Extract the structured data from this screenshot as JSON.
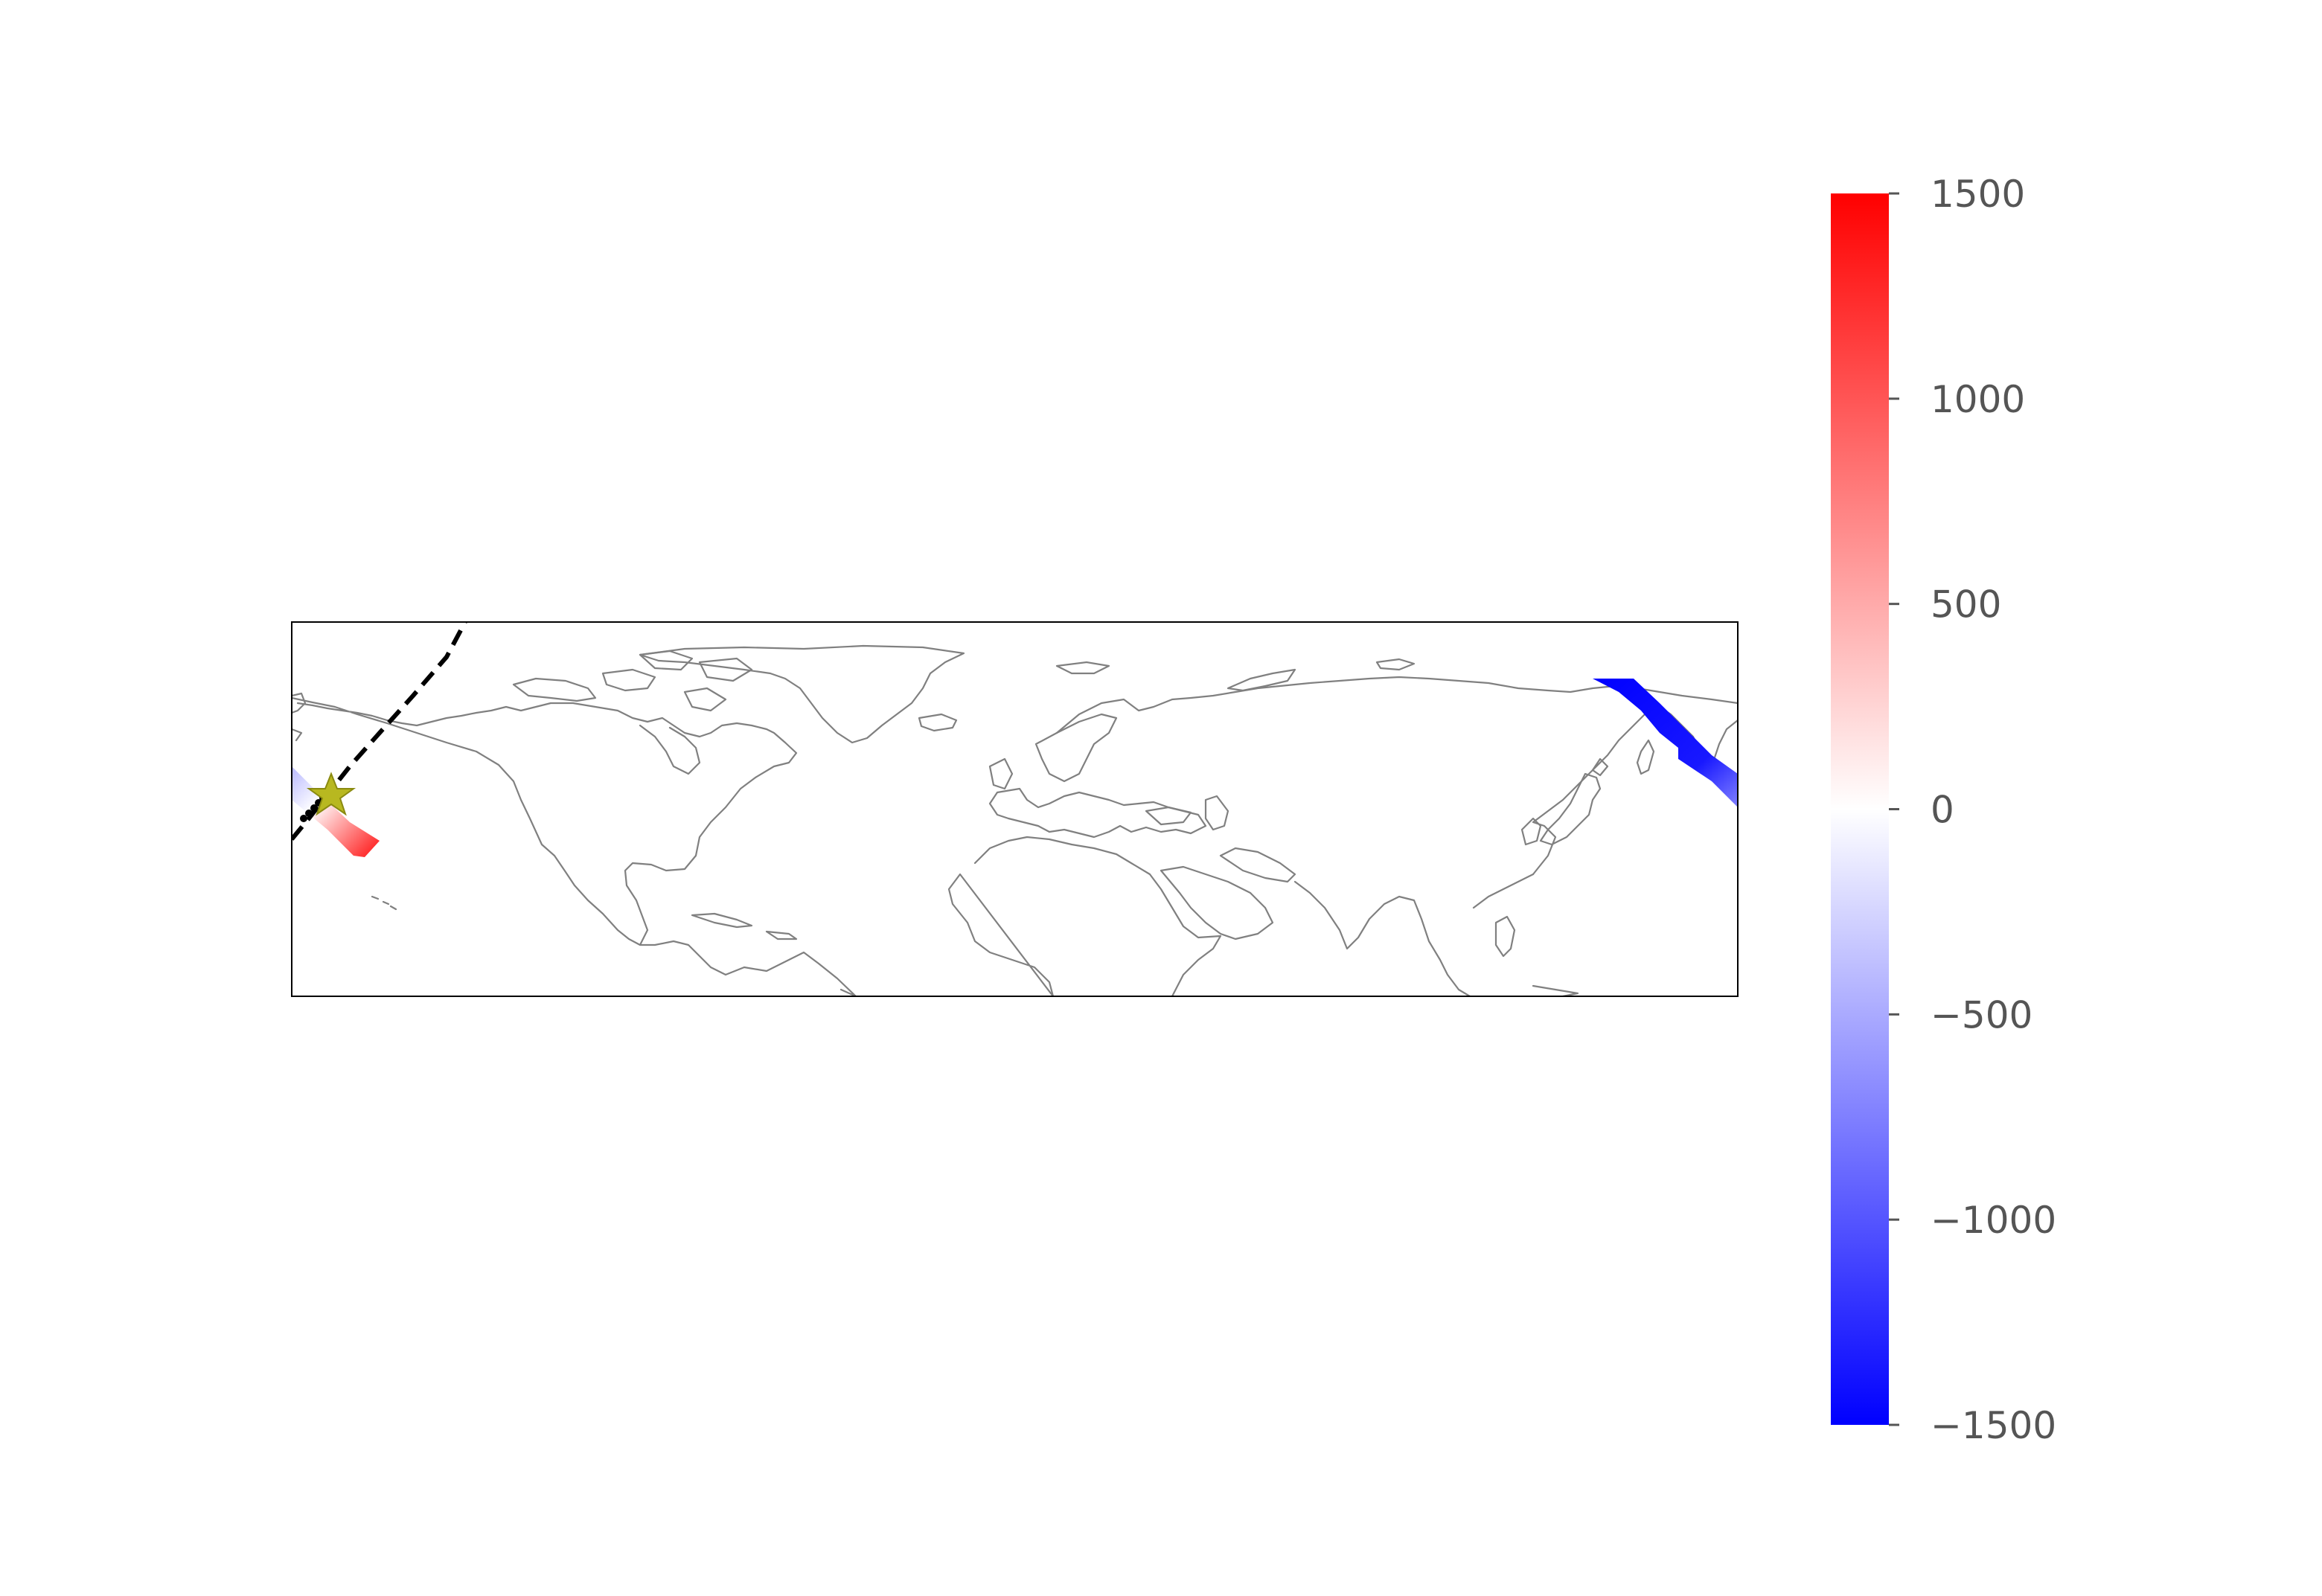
{
  "map": {
    "projection": "plate-carree",
    "extent_lon": [
      -160,
      160
    ],
    "extent_lat": [
      8,
      90
    ],
    "coastlines": true,
    "track_line": {
      "style": "dashed",
      "color": "#000000",
      "points": [
        [
          -160,
          24
        ],
        [
          -152,
          35
        ],
        [
          -145,
          46
        ],
        [
          -137,
          57
        ],
        [
          -122,
          90
        ]
      ]
    },
    "epicenter": {
      "icon": "star-icon",
      "lon": -151.5,
      "lat": 36.5,
      "color": "#b8b820"
    },
    "footprints": [
      {
        "name": "",
        "lon_range": [
          -160,
          -141
        ],
        "lat_range": [
          29,
          40
        ],
        "value_range": [
          -600,
          1500
        ]
      },
      {
        "name": "",
        "lon_range": [
          130,
          160
        ],
        "lat_range": [
          50,
          75
        ],
        "value_range": [
          -1500,
          -1300
        ]
      }
    ]
  },
  "colorbar": {
    "cmap": "bwr",
    "vmin": -1500,
    "vmax": 1500,
    "colors": {
      "low": "#0000ff",
      "mid": "#ffffff",
      "high": "#ff0000"
    },
    "ticks": [
      {
        "value": 1500,
        "label": "1500"
      },
      {
        "value": 1000,
        "label": "1000"
      },
      {
        "value": 500,
        "label": "500"
      },
      {
        "value": 0,
        "label": "0"
      },
      {
        "value": -500,
        "label": "−500"
      },
      {
        "value": -1000,
        "label": "−1000"
      },
      {
        "value": -1500,
        "label": "−1500"
      }
    ]
  }
}
